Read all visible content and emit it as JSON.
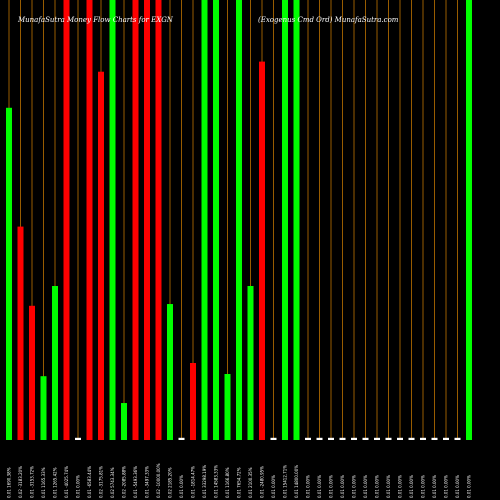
{
  "chart_data": {
    "type": "bar",
    "title_left": "MunafaSutra Money Flow Charts for EXGN",
    "title_right": "(Exogenus Cmd Ord) MunafaSutra.com",
    "colors": {
      "up": "#00ff00",
      "down": "#ff0000",
      "neutral": "#ffffff",
      "grid": "#ff9900",
      "background": "#000000"
    },
    "ylim": [
      0,
      100
    ],
    "bars": [
      {
        "label": "0.01 1690.38%",
        "value": 75.5,
        "color": "up"
      },
      {
        "label": "0.02 -3183.20%",
        "value": 48.5,
        "color": "down"
      },
      {
        "label": "0.01 -3153.72%",
        "value": 30.5,
        "color": "down"
      },
      {
        "label": "0.01 1165.33%",
        "value": 14.5,
        "color": "up"
      },
      {
        "label": "0.01 1265.42%",
        "value": 35.0,
        "color": "up"
      },
      {
        "label": "0.01 -4025.74%",
        "value": 100,
        "color": "down"
      },
      {
        "label": "0.01 0.00%",
        "value": 0.5,
        "color": "neutral"
      },
      {
        "label": "0.01 -6583.44%",
        "value": 100,
        "color": "down"
      },
      {
        "label": "0.02 -3175.81%",
        "value": 83.7,
        "color": "down"
      },
      {
        "label": "0.02 5743.34%",
        "value": 100,
        "color": "up"
      },
      {
        "label": "0.02 -2085.88%",
        "value": 8.4,
        "color": "up"
      },
      {
        "label": "0.01 -5493.36%",
        "value": 100,
        "color": "down"
      },
      {
        "label": "0.01 -3497.33%",
        "value": 100,
        "color": "down"
      },
      {
        "label": "0.02 -10000.00%",
        "value": 100,
        "color": "down"
      },
      {
        "label": "0.02 2185.20%",
        "value": 30.9,
        "color": "up"
      },
      {
        "label": "0.01 0.00%",
        "value": 0.5,
        "color": "neutral"
      },
      {
        "label": "0.01 -1814.47%",
        "value": 17.5,
        "color": "down"
      },
      {
        "label": "0.01 33298.19%",
        "value": 100,
        "color": "up"
      },
      {
        "label": "0.01 14583.33%",
        "value": 100,
        "color": "up"
      },
      {
        "label": "0.01 1166.80%",
        "value": 15.0,
        "color": "up"
      },
      {
        "label": "0.01 7654.72%",
        "value": 100,
        "color": "up"
      },
      {
        "label": "0.01 2100.35%",
        "value": 35.0,
        "color": "up"
      },
      {
        "label": "0.01 -2480.95%",
        "value": 86.0,
        "color": "down"
      },
      {
        "label": "0.01 0.00%",
        "value": 0.5,
        "color": "neutral"
      },
      {
        "label": "0.01 15412.71%",
        "value": 100,
        "color": "up"
      },
      {
        "label": "0.01 14800.00%",
        "value": 100,
        "color": "up"
      },
      {
        "label": "0.01 0.00%",
        "value": 0.5,
        "color": "neutral"
      },
      {
        "label": "0.01 0.00%",
        "value": 0.5,
        "color": "neutral"
      },
      {
        "label": "0.01 0.00%",
        "value": 0.5,
        "color": "neutral"
      },
      {
        "label": "0.01 0.00%",
        "value": 0.5,
        "color": "neutral"
      },
      {
        "label": "0.01 0.00%",
        "value": 0.5,
        "color": "neutral"
      },
      {
        "label": "0.01 0.00%",
        "value": 0.5,
        "color": "neutral"
      },
      {
        "label": "0.01 0.00%",
        "value": 0.5,
        "color": "neutral"
      },
      {
        "label": "0.01 0.00%",
        "value": 0.5,
        "color": "neutral"
      },
      {
        "label": "0.01 0.00%",
        "value": 0.5,
        "color": "neutral"
      },
      {
        "label": "0.01 0.00%",
        "value": 0.5,
        "color": "neutral"
      },
      {
        "label": "0.01 0.00%",
        "value": 0.5,
        "color": "neutral"
      },
      {
        "label": "0.01 0.00%",
        "value": 0.5,
        "color": "neutral"
      },
      {
        "label": "0.01 0.00%",
        "value": 0.5,
        "color": "neutral"
      },
      {
        "label": "0.01 0.00%",
        "value": 0.5,
        "color": "neutral"
      },
      {
        "label": "0.01 0.00%",
        "value": 100,
        "color": "up"
      }
    ]
  }
}
